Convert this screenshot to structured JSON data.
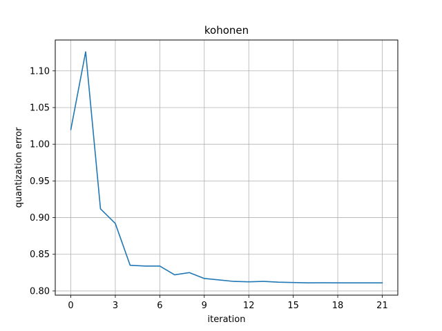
{
  "chart_data": {
    "type": "line",
    "title": "kohonen",
    "xlabel": "iteration",
    "ylabel": "quantization error",
    "xlim": [
      -1.05,
      22.05
    ],
    "ylim": [
      0.7943,
      1.1421
    ],
    "xticks": [
      0,
      3,
      6,
      9,
      12,
      15,
      18,
      21
    ],
    "yticks": [
      0.8,
      0.85,
      0.9,
      0.95,
      1.0,
      1.05,
      1.1
    ],
    "ytick_labels": [
      "0.80",
      "0.85",
      "0.90",
      "0.95",
      "1.00",
      "1.05",
      "1.10"
    ],
    "grid": true,
    "series": [
      {
        "color": "#1f77b4",
        "x": [
          0,
          1,
          2,
          3,
          4,
          5,
          6,
          7,
          8,
          9,
          10,
          11,
          12,
          13,
          14,
          15,
          16,
          17,
          18,
          19,
          20,
          21
        ],
        "y": [
          1.02,
          1.126,
          0.912,
          0.892,
          0.835,
          0.834,
          0.834,
          0.822,
          0.825,
          0.817,
          0.815,
          0.813,
          0.8125,
          0.813,
          0.812,
          0.8115,
          0.811,
          0.8112,
          0.811,
          0.811,
          0.811,
          0.811
        ]
      }
    ]
  }
}
